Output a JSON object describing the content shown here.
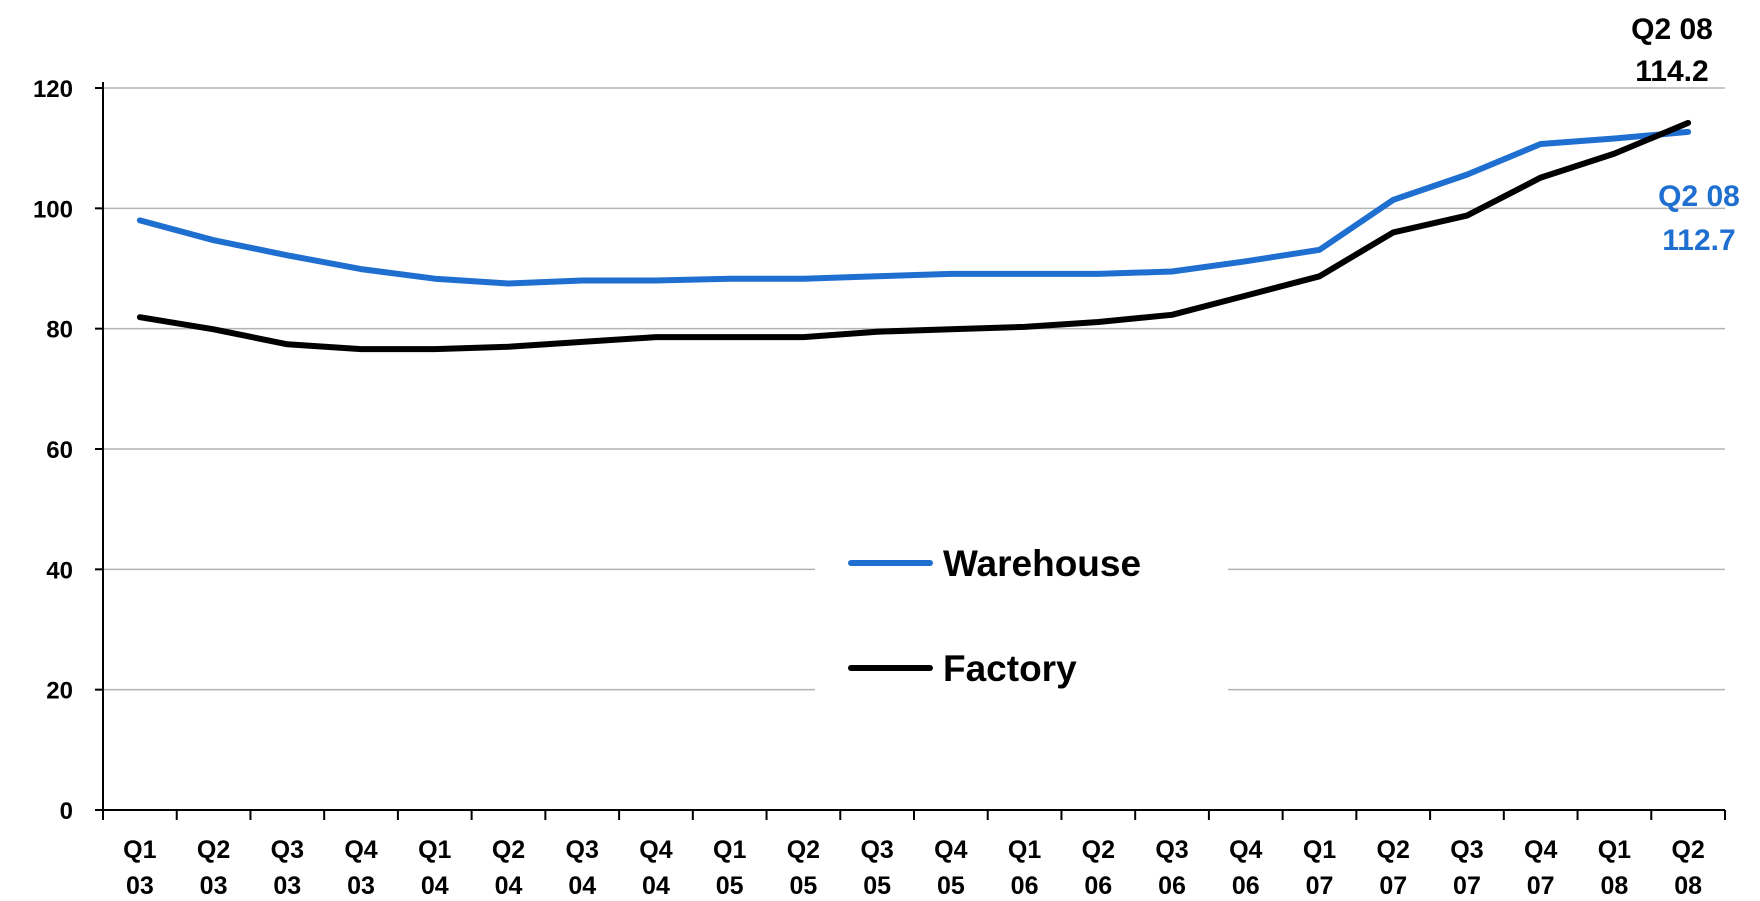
{
  "chart_data": {
    "type": "line",
    "title": "",
    "xlabel": "",
    "ylabel": "",
    "ylim": [
      0,
      120
    ],
    "yticks": [
      "0",
      "20",
      "40",
      "60",
      "80",
      "100",
      "120"
    ],
    "grid": true,
    "legend_position": "center",
    "categories": [
      [
        "Q1",
        "03"
      ],
      [
        "Q2",
        "03"
      ],
      [
        "Q3",
        "03"
      ],
      [
        "Q4",
        "03"
      ],
      [
        "Q1",
        "04"
      ],
      [
        "Q2",
        "04"
      ],
      [
        "Q3",
        "04"
      ],
      [
        "Q4",
        "04"
      ],
      [
        "Q1",
        "05"
      ],
      [
        "Q2",
        "05"
      ],
      [
        "Q3",
        "05"
      ],
      [
        "Q4",
        "05"
      ],
      [
        "Q1",
        "06"
      ],
      [
        "Q2",
        "06"
      ],
      [
        "Q3",
        "06"
      ],
      [
        "Q4",
        "06"
      ],
      [
        "Q1",
        "07"
      ],
      [
        "Q2",
        "07"
      ],
      [
        "Q3",
        "07"
      ],
      [
        "Q4",
        "07"
      ],
      [
        "Q1",
        "08"
      ],
      [
        "Q2",
        "08"
      ]
    ],
    "series": [
      {
        "name": "Warehouse",
        "color": "#1f6fd0",
        "values": [
          98.0,
          94.7,
          92.2,
          89.9,
          88.3,
          87.5,
          88.0,
          88.0,
          88.3,
          88.3,
          88.7,
          89.1,
          89.1,
          89.1,
          89.5,
          91.2,
          93.1,
          101.4,
          105.6,
          110.7,
          111.6,
          112.7
        ]
      },
      {
        "name": "Factory",
        "color": "#000000",
        "values": [
          81.9,
          79.9,
          77.4,
          76.6,
          76.6,
          77.0,
          77.8,
          78.6,
          78.6,
          78.6,
          79.5,
          79.9,
          80.3,
          81.1,
          82.3,
          85.5,
          88.7,
          96.0,
          98.8,
          105.1,
          109.1,
          114.2
        ]
      }
    ],
    "annotations": [
      {
        "series": "Factory",
        "line1": "Q2 08",
        "line2": "114.2",
        "color": "#000000"
      },
      {
        "series": "Warehouse",
        "line1": "Q2 08",
        "line2": "112.7",
        "color": "#1f6fd0"
      }
    ]
  }
}
